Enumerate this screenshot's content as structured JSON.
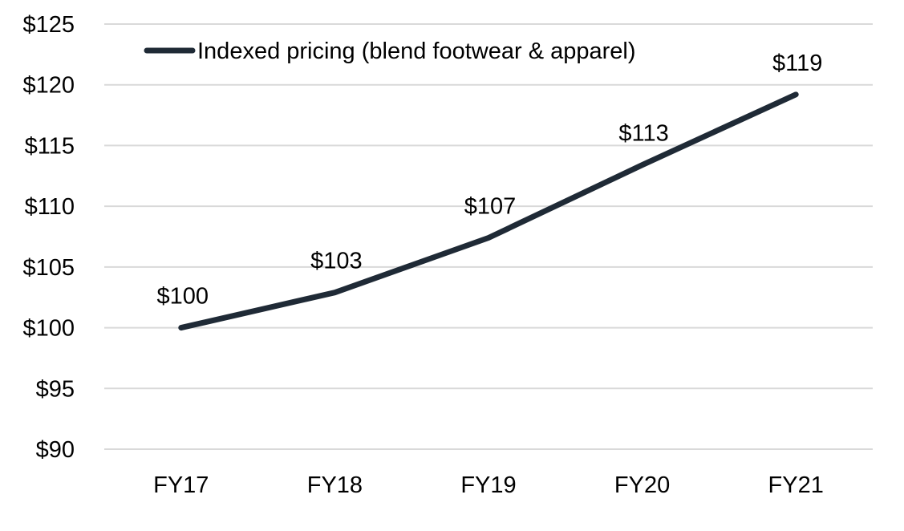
{
  "chart_data": {
    "type": "line",
    "title": "",
    "xlabel": "",
    "ylabel": "",
    "categories": [
      "FY17",
      "FY18",
      "FY19",
      "FY20",
      "FY21"
    ],
    "series": [
      {
        "name": "Indexed pricing (blend footwear & apparel)",
        "values": [
          100,
          102.9,
          107.4,
          113.4,
          119.2
        ],
        "labels": [
          "$100",
          "$103",
          "$107",
          "$113",
          "$119"
        ],
        "color": "#1f2a36"
      }
    ],
    "yticks": [
      90,
      95,
      100,
      105,
      110,
      115,
      120,
      125
    ],
    "ytick_labels": [
      "$90",
      "$95",
      "$100",
      "$105",
      "$110",
      "$115",
      "$120",
      "$125"
    ],
    "ylim": [
      90,
      125
    ],
    "grid": true,
    "gridline_color": "#d9d9d9",
    "legend_position": "top-left"
  }
}
